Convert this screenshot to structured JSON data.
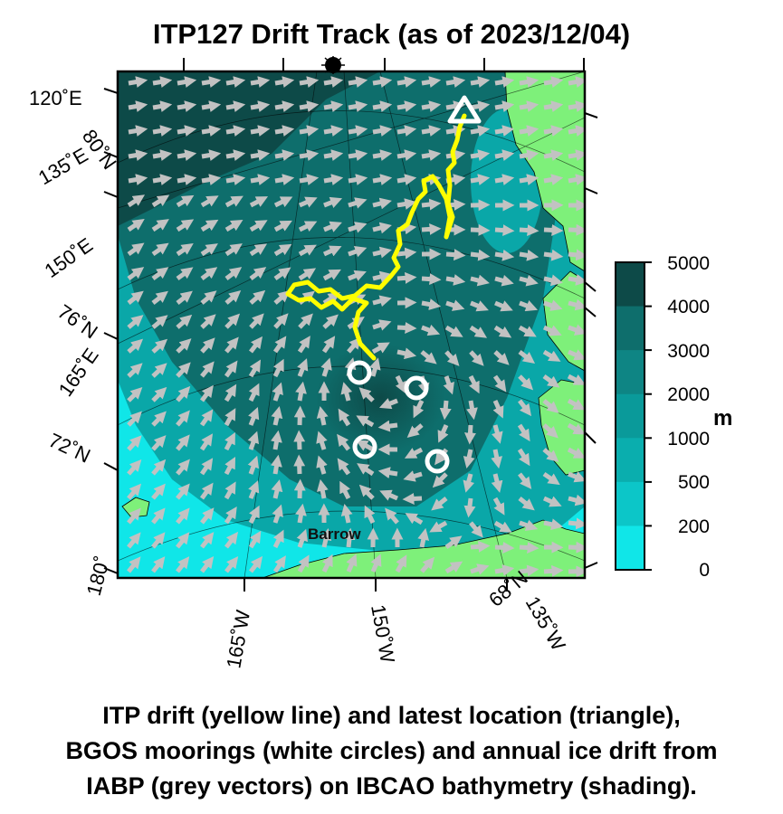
{
  "title": "ITP127 Drift Track (as of 2023/12/04)",
  "map": {
    "colors": {
      "land": "#7ef07a",
      "depth_shallow": "#10e6e8",
      "depth_mid": "#0aa7a8",
      "depth_deep": "#0e6e6c",
      "depth_deepest": "#0d4a48",
      "ice_vector": "#c2c2c2",
      "itp_track": "#ffff00",
      "mooring": "#ffffff"
    },
    "longitude_labels": [
      "120˚E",
      "135˚E",
      "150˚E",
      "165˚E",
      "180˚",
      "165˚W",
      "150˚W",
      "135˚W"
    ],
    "latitude_labels": [
      "80˚N",
      "76˚N",
      "72˚N",
      "68˚N"
    ],
    "place_label": "Barrow",
    "markers": {
      "latest_location": "triangle",
      "moorings": "circle",
      "mooring_count": 4
    }
  },
  "colorbar": {
    "levels": [
      "5000",
      "4000",
      "3000",
      "2000",
      "1000",
      "500",
      "200",
      "0"
    ],
    "colors": [
      "#0d4a48",
      "#0e6e6c",
      "#0e8584",
      "#0a9a9a",
      "#0aaeae",
      "#0cc6c8",
      "#10e6e8"
    ],
    "unit": "m"
  },
  "caption": {
    "line1": "ITP drift (yellow line) and latest location (triangle),",
    "line2": "BGOS moorings (white circles) and annual ice drift from",
    "line3": "IABP (grey vectors) on IBCAO bathymetry (shading)."
  }
}
